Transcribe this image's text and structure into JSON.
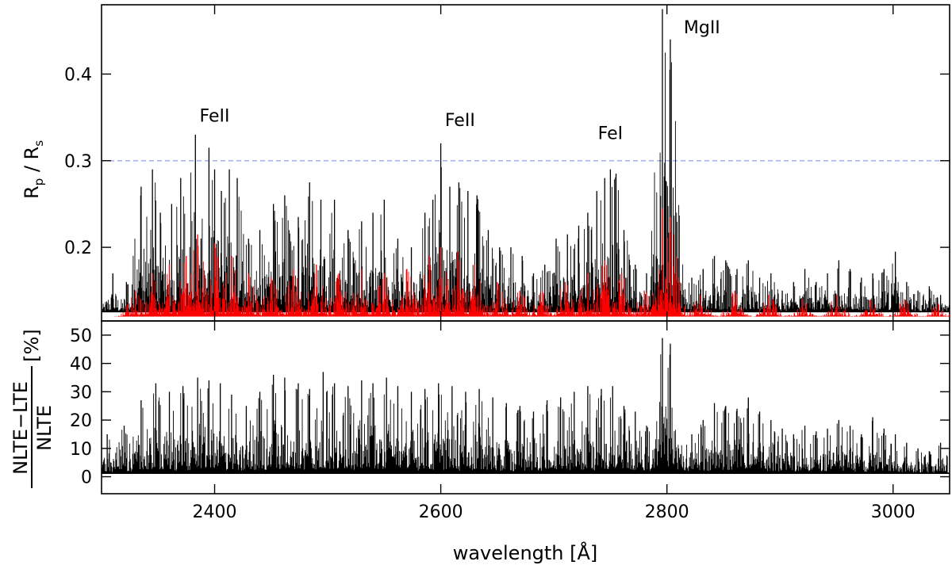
{
  "chart_data": [
    {
      "panel": "top",
      "type": "line",
      "ylabel": {
        "main": "R",
        "sub1": "p",
        "sep": " / R",
        "sub2": "s"
      },
      "xlim": [
        2300,
        3050
      ],
      "ylim": [
        0.115,
        0.48
      ],
      "yticks": [
        0.2,
        0.3,
        0.4
      ],
      "ytick_labels": [
        "0.2",
        "0.3",
        "0.4"
      ],
      "reference_line": {
        "y": 0.3,
        "style": "dashed",
        "color": "#9aa8f0"
      },
      "annotations": [
        {
          "text": "FeII",
          "x": 2400,
          "y": 0.345
        },
        {
          "text": "FeII",
          "x": 2617,
          "y": 0.34
        },
        {
          "text": "FeI",
          "x": 2750,
          "y": 0.325
        },
        {
          "text": "MgII",
          "x": 2831,
          "y": 0.447
        }
      ],
      "series": [
        {
          "color": "#000000",
          "baseline": 0.125,
          "peaks": [
            [
              2310,
              0.17
            ],
            [
              2322,
              0.16
            ],
            [
              2335,
              0.27
            ],
            [
              2345,
              0.29
            ],
            [
              2352,
              0.24
            ],
            [
              2362,
              0.25
            ],
            [
              2370,
              0.28
            ],
            [
              2383,
              0.33
            ],
            [
              2388,
              0.21
            ],
            [
              2395,
              0.315
            ],
            [
              2400,
              0.29
            ],
            [
              2406,
              0.265
            ],
            [
              2413,
              0.29
            ],
            [
              2420,
              0.28
            ],
            [
              2430,
              0.21
            ],
            [
              2440,
              0.22
            ],
            [
              2452,
              0.25
            ],
            [
              2462,
              0.26
            ],
            [
              2474,
              0.235
            ],
            [
              2484,
              0.275
            ],
            [
              2494,
              0.255
            ],
            [
              2506,
              0.255
            ],
            [
              2518,
              0.22
            ],
            [
              2530,
              0.23
            ],
            [
              2540,
              0.24
            ],
            [
              2550,
              0.255
            ],
            [
              2562,
              0.21
            ],
            [
              2574,
              0.2
            ],
            [
              2586,
              0.24
            ],
            [
              2593,
              0.255
            ],
            [
              2600,
              0.32
            ],
            [
              2608,
              0.27
            ],
            [
              2616,
              0.275
            ],
            [
              2624,
              0.265
            ],
            [
              2632,
              0.26
            ],
            [
              2642,
              0.22
            ],
            [
              2652,
              0.2
            ],
            [
              2662,
              0.2
            ],
            [
              2672,
              0.19
            ],
            [
              2682,
              0.17
            ],
            [
              2692,
              0.18
            ],
            [
              2702,
              0.21
            ],
            [
              2712,
              0.215
            ],
            [
              2722,
              0.225
            ],
            [
              2730,
              0.24
            ],
            [
              2738,
              0.265
            ],
            [
              2745,
              0.28
            ],
            [
              2750,
              0.29
            ],
            [
              2755,
              0.285
            ],
            [
              2762,
              0.22
            ],
            [
              2772,
              0.18
            ],
            [
              2782,
              0.17
            ],
            [
              2790,
              0.15
            ],
            [
              2796,
              0.475
            ],
            [
              2803,
              0.44
            ],
            [
              2812,
              0.15
            ],
            [
              2822,
              0.165
            ],
            [
              2832,
              0.175
            ],
            [
              2842,
              0.19
            ],
            [
              2852,
              0.185
            ],
            [
              2862,
              0.175
            ],
            [
              2872,
              0.185
            ],
            [
              2882,
              0.165
            ],
            [
              2892,
              0.17
            ],
            [
              2902,
              0.15
            ],
            [
              2912,
              0.16
            ],
            [
              2922,
              0.175
            ],
            [
              2932,
              0.16
            ],
            [
              2942,
              0.17
            ],
            [
              2952,
              0.185
            ],
            [
              2962,
              0.175
            ],
            [
              2972,
              0.165
            ],
            [
              2982,
              0.17
            ],
            [
              2992,
              0.175
            ],
            [
              3002,
              0.195
            ],
            [
              3012,
              0.16
            ],
            [
              3022,
              0.15
            ],
            [
              3032,
              0.155
            ],
            [
              3042,
              0.145
            ]
          ]
        },
        {
          "color": "#ff0000",
          "baseline": 0.12,
          "peaks": [
            [
              2330,
              0.15
            ],
            [
              2345,
              0.17
            ],
            [
              2360,
              0.18
            ],
            [
              2375,
              0.19
            ],
            [
              2385,
              0.215
            ],
            [
              2400,
              0.205
            ],
            [
              2415,
              0.19
            ],
            [
              2430,
              0.17
            ],
            [
              2450,
              0.165
            ],
            [
              2470,
              0.175
            ],
            [
              2490,
              0.18
            ],
            [
              2510,
              0.17
            ],
            [
              2530,
              0.175
            ],
            [
              2550,
              0.17
            ],
            [
              2570,
              0.175
            ],
            [
              2590,
              0.19
            ],
            [
              2600,
              0.2
            ],
            [
              2615,
              0.195
            ],
            [
              2630,
              0.18
            ],
            [
              2650,
              0.16
            ],
            [
              2670,
              0.15
            ],
            [
              2690,
              0.15
            ],
            [
              2710,
              0.16
            ],
            [
              2730,
              0.17
            ],
            [
              2745,
              0.185
            ],
            [
              2760,
              0.17
            ],
            [
              2780,
              0.15
            ],
            [
              2796,
              0.245
            ],
            [
              2803,
              0.235
            ],
            [
              2830,
              0.145
            ],
            [
              2860,
              0.15
            ],
            [
              2890,
              0.145
            ],
            [
              2920,
              0.14
            ],
            [
              2950,
              0.145
            ],
            [
              2980,
              0.14
            ],
            [
              3010,
              0.14
            ],
            [
              3040,
              0.135
            ]
          ]
        }
      ]
    },
    {
      "panel": "bottom",
      "type": "line",
      "ylabel": {
        "numerator": "NLTE−LTE",
        "denominator": "NLTE",
        "unit": "[%]"
      },
      "xlabel": "wavelength [Å]",
      "xlim": [
        2300,
        3050
      ],
      "ylim": [
        -6,
        55
      ],
      "xticks": [
        2400,
        2600,
        2800,
        3000
      ],
      "xtick_labels": [
        "2400",
        "2600",
        "2800",
        "3000"
      ],
      "yticks": [
        0,
        10,
        20,
        30,
        40,
        50
      ],
      "ytick_labels": [
        "0",
        "10",
        "20",
        "30",
        "40",
        "50"
      ],
      "series": [
        {
          "color": "#000000",
          "baseline": 1,
          "peaks": [
            [
              2305,
              15
            ],
            [
              2320,
              18
            ],
            [
              2335,
              27
            ],
            [
              2348,
              33
            ],
            [
              2360,
              30
            ],
            [
              2372,
              32
            ],
            [
              2385,
              35
            ],
            [
              2395,
              34
            ],
            [
              2405,
              33
            ],
            [
              2415,
              29
            ],
            [
              2428,
              25
            ],
            [
              2440,
              30
            ],
            [
              2452,
              36
            ],
            [
              2462,
              35
            ],
            [
              2474,
              33
            ],
            [
              2484,
              31
            ],
            [
              2496,
              37
            ],
            [
              2506,
              33
            ],
            [
              2518,
              32
            ],
            [
              2530,
              34
            ],
            [
              2540,
              33
            ],
            [
              2552,
              35
            ],
            [
              2562,
              32
            ],
            [
              2574,
              30
            ],
            [
              2586,
              31
            ],
            [
              2598,
              33
            ],
            [
              2610,
              32
            ],
            [
              2622,
              30
            ],
            [
              2634,
              31
            ],
            [
              2646,
              28
            ],
            [
              2658,
              26
            ],
            [
              2670,
              25
            ],
            [
              2682,
              23
            ],
            [
              2694,
              27
            ],
            [
              2706,
              28
            ],
            [
              2718,
              30
            ],
            [
              2730,
              32
            ],
            [
              2742,
              31
            ],
            [
              2752,
              32
            ],
            [
              2762,
              25
            ],
            [
              2772,
              23
            ],
            [
              2782,
              18
            ],
            [
              2790,
              10
            ],
            [
              2796,
              49
            ],
            [
              2803,
              47
            ],
            [
              2812,
              8
            ],
            [
              2822,
              15
            ],
            [
              2832,
              20
            ],
            [
              2842,
              26
            ],
            [
              2852,
              25
            ],
            [
              2862,
              24
            ],
            [
              2872,
              28
            ],
            [
              2882,
              23
            ],
            [
              2892,
              20
            ],
            [
              2902,
              17
            ],
            [
              2912,
              15
            ],
            [
              2922,
              18
            ],
            [
              2932,
              16
            ],
            [
              2942,
              17
            ],
            [
              2952,
              20
            ],
            [
              2962,
              18
            ],
            [
              2972,
              15
            ],
            [
              2982,
              21
            ],
            [
              2992,
              17
            ],
            [
              3002,
              15
            ],
            [
              3012,
              12
            ],
            [
              3022,
              10
            ],
            [
              3032,
              9
            ],
            [
              3042,
              12
            ]
          ]
        }
      ]
    }
  ]
}
